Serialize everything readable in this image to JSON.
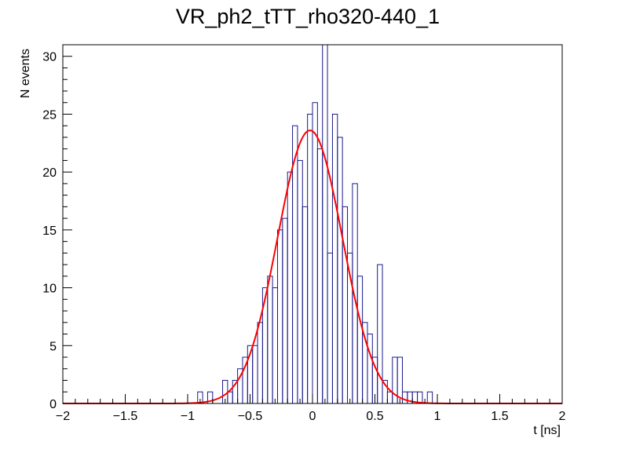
{
  "chart_data": {
    "type": "histogram",
    "title": "VR_ph2_tTT_rho320-440_1",
    "xlabel": "t [ns]",
    "ylabel": "N events",
    "xlim": [
      -2,
      2
    ],
    "ylim": [
      0,
      31
    ],
    "grid": false,
    "legend": "none",
    "x_ticks": [
      "−2",
      "−1.5",
      "−1",
      "−0.5",
      "0",
      "0.5",
      "1",
      "1.5",
      "2"
    ],
    "y_ticks": [
      "0",
      "5",
      "10",
      "15",
      "20",
      "25",
      "30"
    ],
    "bin_width": 0.04,
    "histogram": {
      "color": "#1a1a8c",
      "bins": [
        {
          "x": -0.92,
          "count": 1
        },
        {
          "x": -0.84,
          "count": 1
        },
        {
          "x": -0.72,
          "count": 2
        },
        {
          "x": -0.68,
          "count": 1
        },
        {
          "x": -0.64,
          "count": 2
        },
        {
          "x": -0.6,
          "count": 3
        },
        {
          "x": -0.56,
          "count": 4
        },
        {
          "x": -0.52,
          "count": 5
        },
        {
          "x": -0.48,
          "count": 5
        },
        {
          "x": -0.44,
          "count": 7
        },
        {
          "x": -0.4,
          "count": 10
        },
        {
          "x": -0.36,
          "count": 11
        },
        {
          "x": -0.32,
          "count": 10
        },
        {
          "x": -0.28,
          "count": 15
        },
        {
          "x": -0.24,
          "count": 16
        },
        {
          "x": -0.2,
          "count": 20
        },
        {
          "x": -0.16,
          "count": 24
        },
        {
          "x": -0.12,
          "count": 21
        },
        {
          "x": -0.08,
          "count": 17
        },
        {
          "x": -0.04,
          "count": 25
        },
        {
          "x": 0.0,
          "count": 26
        },
        {
          "x": 0.04,
          "count": 22
        },
        {
          "x": 0.08,
          "count": 31
        },
        {
          "x": 0.12,
          "count": 13
        },
        {
          "x": 0.16,
          "count": 25
        },
        {
          "x": 0.2,
          "count": 23
        },
        {
          "x": 0.24,
          "count": 17
        },
        {
          "x": 0.28,
          "count": 13
        },
        {
          "x": 0.32,
          "count": 19
        },
        {
          "x": 0.36,
          "count": 11
        },
        {
          "x": 0.4,
          "count": 7
        },
        {
          "x": 0.44,
          "count": 6
        },
        {
          "x": 0.48,
          "count": 4
        },
        {
          "x": 0.52,
          "count": 12
        },
        {
          "x": 0.56,
          "count": 2
        },
        {
          "x": 0.6,
          "count": 1
        },
        {
          "x": 0.64,
          "count": 4
        },
        {
          "x": 0.68,
          "count": 4
        },
        {
          "x": 0.72,
          "count": 1
        },
        {
          "x": 0.76,
          "count": 1
        },
        {
          "x": 0.8,
          "count": 1
        },
        {
          "x": 0.84,
          "count": 1
        },
        {
          "x": 0.92,
          "count": 1
        }
      ]
    },
    "fit": {
      "type": "gaussian",
      "color": "#ff0000",
      "amplitude": 23.6,
      "mean": -0.02,
      "sigma": 0.26
    }
  }
}
